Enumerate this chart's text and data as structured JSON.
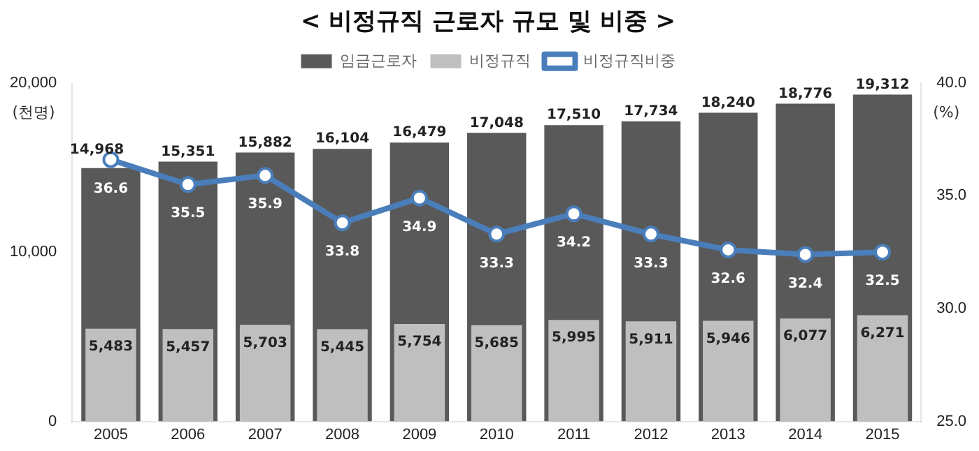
{
  "chart_data": {
    "type": "bar",
    "title": "< 비정규직 근로자 규모 및 비중 >",
    "ylabel": "(천명)",
    "y2label": "(%)",
    "categories": [
      "2005",
      "2006",
      "2007",
      "2008",
      "2009",
      "2010",
      "2011",
      "2012",
      "2013",
      "2014",
      "2015"
    ],
    "series": [
      {
        "name": "임금근로자",
        "color": "#595959",
        "values": [
          14968,
          15351,
          15882,
          16104,
          16479,
          17048,
          17510,
          17734,
          18240,
          18776,
          19312
        ],
        "value_labels": [
          "14,968",
          "15,351",
          "15,882",
          "16,104",
          "16,479",
          "17,048",
          "17,510",
          "17,734",
          "18,240",
          "18,776",
          "19,312"
        ]
      },
      {
        "name": "비정규직",
        "color": "#bfbfbf",
        "values": [
          5483,
          5457,
          5703,
          5445,
          5754,
          5685,
          5995,
          5911,
          5946,
          6077,
          6271
        ],
        "value_labels": [
          "5,483",
          "5,457",
          "5,703",
          "5,445",
          "5,754",
          "5,685",
          "5,995",
          "5,911",
          "5,946",
          "6,077",
          "6,271"
        ]
      },
      {
        "name": "비정규직비중",
        "type": "line",
        "axis": "y2",
        "color": "#4a7ebb",
        "values": [
          36.6,
          35.5,
          35.9,
          33.8,
          34.9,
          33.3,
          34.2,
          33.3,
          32.6,
          32.4,
          32.5
        ]
      }
    ],
    "ylim": [
      0,
      20000
    ],
    "yticks": [
      0,
      {
        "value": 10000,
        "label": "10,000"
      },
      {
        "value": 20000,
        "label": "20,000"
      }
    ],
    "y2lim": [
      25,
      40
    ],
    "y2ticks": [
      {
        "value": 25,
        "label": "25.0"
      },
      {
        "value": 30,
        "label": "30.0"
      },
      {
        "value": 35,
        "label": "35.0"
      },
      {
        "value": 40,
        "label": "40.0"
      }
    ],
    "data_labels": true,
    "legend": "top",
    "grid": false,
    "marker": "circle",
    "line_style": "solid"
  }
}
